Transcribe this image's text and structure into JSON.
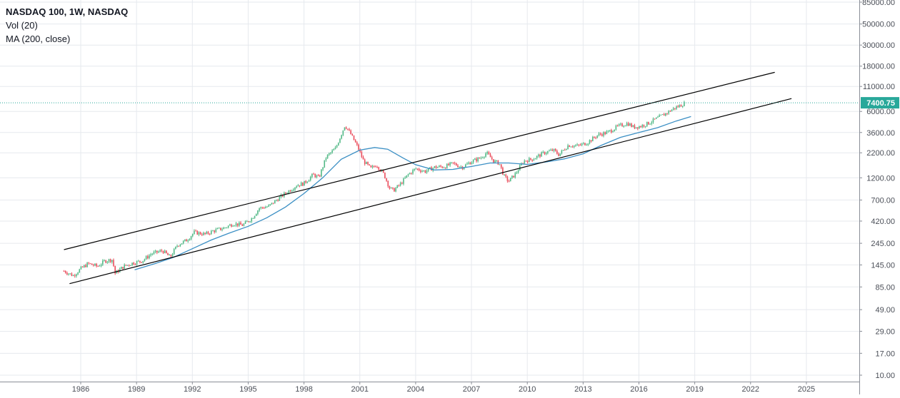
{
  "legend": {
    "title": "NASDAQ 100, 1W, NASDAQ",
    "indicator_vol": "Vol (20)",
    "indicator_ma": "MA (200, close)"
  },
  "price_badge": "7400.75",
  "colors": {
    "up": "#53b987",
    "down": "#eb4d5c",
    "ma": "#3b8fc4",
    "channel": "#000000",
    "grid": "#e6e9ee",
    "last_price": "#28a89a"
  },
  "chart_data": {
    "type": "candlestick",
    "scale": "log",
    "grid": true,
    "x_ticks": [
      "1986",
      "1989",
      "1992",
      "1995",
      "1998",
      "2001",
      "2004",
      "2007",
      "2010",
      "2013",
      "2016",
      "2019",
      "2022",
      "2025"
    ],
    "y_ticks": [
      "85000.00",
      "50000.00",
      "30000.00",
      "18000.00",
      "11000.00",
      "6000.00",
      "3600.00",
      "2200.00",
      "1200.00",
      "700.00",
      "420.00",
      "245.00",
      "145.00",
      "85.00",
      "49.00",
      "29.00",
      "17.00",
      "10.00"
    ],
    "last_price": 7400.75,
    "series": [
      {
        "kind": "price",
        "points": [
          [
            1985.1,
            125
          ],
          [
            1985.6,
            112
          ],
          [
            1986.0,
            132
          ],
          [
            1986.4,
            150
          ],
          [
            1986.9,
            140
          ],
          [
            1987.3,
            160
          ],
          [
            1987.7,
            165
          ],
          [
            1987.85,
            118
          ],
          [
            1988.3,
            140
          ],
          [
            1988.8,
            152
          ],
          [
            1989.3,
            160
          ],
          [
            1989.8,
            190
          ],
          [
            1990.4,
            205
          ],
          [
            1990.8,
            175
          ],
          [
            1991.2,
            235
          ],
          [
            1991.7,
            265
          ],
          [
            1992.1,
            320
          ],
          [
            1992.7,
            305
          ],
          [
            1993.1,
            330
          ],
          [
            1993.7,
            355
          ],
          [
            1994.2,
            395
          ],
          [
            1994.7,
            380
          ],
          [
            1995.2,
            450
          ],
          [
            1995.6,
            575
          ],
          [
            1996.1,
            600
          ],
          [
            1996.6,
            720
          ],
          [
            1997.1,
            850
          ],
          [
            1997.6,
            1000
          ],
          [
            1998.0,
            1050
          ],
          [
            1998.5,
            1300
          ],
          [
            1998.8,
            1200
          ],
          [
            1999.2,
            2000
          ],
          [
            1999.7,
            2450
          ],
          [
            2000.2,
            4300
          ],
          [
            2000.5,
            3500
          ],
          [
            2000.9,
            2500
          ],
          [
            2001.2,
            1800
          ],
          [
            2001.6,
            1500
          ],
          [
            2001.9,
            1650
          ],
          [
            2002.3,
            1300
          ],
          [
            2002.6,
            940
          ],
          [
            2002.8,
            880
          ],
          [
            2003.2,
            1040
          ],
          [
            2003.6,
            1300
          ],
          [
            2004.0,
            1500
          ],
          [
            2004.5,
            1400
          ],
          [
            2005.0,
            1550
          ],
          [
            2005.6,
            1580
          ],
          [
            2006.0,
            1700
          ],
          [
            2006.5,
            1550
          ],
          [
            2007.0,
            1780
          ],
          [
            2007.5,
            1950
          ],
          [
            2007.8,
            2200
          ],
          [
            2008.2,
            1800
          ],
          [
            2008.5,
            1700
          ],
          [
            2008.75,
            1250
          ],
          [
            2009.0,
            1100
          ],
          [
            2009.4,
            1350
          ],
          [
            2009.8,
            1800
          ],
          [
            2010.3,
            1900
          ],
          [
            2010.9,
            2200
          ],
          [
            2011.4,
            2350
          ],
          [
            2011.7,
            2100
          ],
          [
            2012.2,
            2650
          ],
          [
            2012.7,
            2600
          ],
          [
            2013.2,
            2800
          ],
          [
            2013.8,
            3400
          ],
          [
            2014.3,
            3600
          ],
          [
            2014.9,
            4200
          ],
          [
            2015.4,
            4500
          ],
          [
            2015.7,
            4100
          ],
          [
            2016.1,
            4200
          ],
          [
            2016.5,
            4500
          ],
          [
            2017.0,
            5100
          ],
          [
            2017.5,
            5800
          ],
          [
            2017.9,
            6500
          ],
          [
            2018.2,
            6900
          ],
          [
            2018.5,
            7400
          ]
        ]
      },
      {
        "name": "MA (200, close)",
        "kind": "ma",
        "points": [
          [
            1988.9,
            129
          ],
          [
            1990.0,
            150
          ],
          [
            1991.0,
            175
          ],
          [
            1992.0,
            215
          ],
          [
            1993.0,
            265
          ],
          [
            1994.0,
            315
          ],
          [
            1995.0,
            370
          ],
          [
            1996.0,
            455
          ],
          [
            1997.0,
            590
          ],
          [
            1998.0,
            820
          ],
          [
            1999.0,
            1200
          ],
          [
            2000.0,
            1880
          ],
          [
            2001.0,
            2350
          ],
          [
            2001.8,
            2500
          ],
          [
            2002.5,
            2400
          ],
          [
            2003.3,
            1950
          ],
          [
            2004.0,
            1650
          ],
          [
            2005.0,
            1450
          ],
          [
            2006.0,
            1470
          ],
          [
            2007.0,
            1580
          ],
          [
            2008.0,
            1720
          ],
          [
            2009.0,
            1720
          ],
          [
            2010.0,
            1660
          ],
          [
            2011.0,
            1760
          ],
          [
            2012.0,
            1900
          ],
          [
            2013.0,
            2150
          ],
          [
            2014.0,
            2650
          ],
          [
            2015.0,
            3200
          ],
          [
            2016.0,
            3600
          ],
          [
            2017.0,
            4050
          ],
          [
            2018.0,
            4750
          ],
          [
            2018.8,
            5300
          ]
        ]
      },
      {
        "kind": "channel-upper",
        "points": [
          [
            1985.1,
            210
          ],
          [
            2023.3,
            15500
          ]
        ]
      },
      {
        "kind": "channel-lower",
        "points": [
          [
            1985.4,
            92
          ],
          [
            2024.2,
            8200
          ]
        ]
      }
    ]
  }
}
